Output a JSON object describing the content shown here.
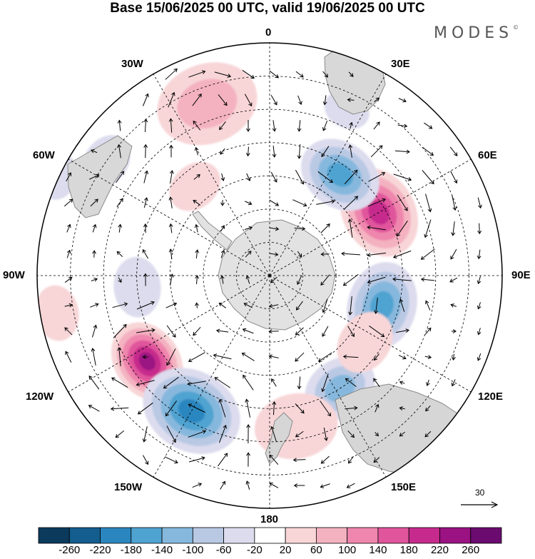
{
  "title": "Base 15/06/2025 00 UTC, valid 19/06/2025 00 UTC",
  "logo": "MODES",
  "logo_mark": "©",
  "longitude_labels": {
    "lon_0": "0",
    "lon_30e": "30E",
    "lon_60e": "60E",
    "lon_90e": "90E",
    "lon_120e": "120E",
    "lon_150e": "150E",
    "lon_180": "180",
    "lon_150w": "150W",
    "lon_120w": "120W",
    "lon_90w": "90W",
    "lon_60w": "60W",
    "lon_30w": "30W"
  },
  "reference_vector": "30",
  "colorbar": {
    "ticks": [
      "-260",
      "-220",
      "-180",
      "-140",
      "-100",
      "-60",
      "-20",
      "20",
      "60",
      "100",
      "140",
      "180",
      "220",
      "260"
    ],
    "colors": [
      "#0b3a5c",
      "#135e8f",
      "#2b86bf",
      "#4fa3d1",
      "#86b8dd",
      "#b9c9e4",
      "#dcdcee",
      "#ffffff",
      "#f8d6d8",
      "#f4b2c1",
      "#ef86ad",
      "#e0559b",
      "#c62a8c",
      "#9b1282",
      "#6b0b6f"
    ]
  },
  "anomalies": [
    {
      "lon": 60,
      "lat": -52,
      "value": 250,
      "r": 0.2
    },
    {
      "lon": 35,
      "lat": -53,
      "value": -200,
      "r": 0.18
    },
    {
      "lon": 105,
      "lat": -55,
      "value": -180,
      "r": 0.19
    },
    {
      "lon": 148,
      "lat": -50,
      "value": -160,
      "r": 0.16
    },
    {
      "lon": 125,
      "lat": -55,
      "value": 90,
      "r": 0.14
    },
    {
      "lon": 170,
      "lat": -44,
      "value": 80,
      "r": 0.18
    },
    {
      "lon": -125,
      "lat": -45,
      "value": 260,
      "r": 0.18
    },
    {
      "lon": -150,
      "lat": -43,
      "value": -240,
      "r": 0.22
    },
    {
      "lon": -20,
      "lat": -35,
      "value": 110,
      "r": 0.22
    },
    {
      "lon": -55,
      "lat": -30,
      "value": -80,
      "r": 0.12
    },
    {
      "lon": -65,
      "lat": -20,
      "value": -70,
      "r": 0.1
    },
    {
      "lon": -95,
      "lat": -50,
      "value": -90,
      "r": 0.13
    },
    {
      "lon": -40,
      "lat": -55,
      "value": 70,
      "r": 0.12
    },
    {
      "lon": 25,
      "lat": -35,
      "value": -60,
      "r": 0.1
    },
    {
      "lon": -100,
      "lat": -25,
      "value": 80,
      "r": 0.12
    }
  ],
  "colors": {
    "land": "#cfcfcf",
    "land_stroke": "#8a8a8a",
    "grid": "#000000",
    "arrow": "#000000"
  }
}
